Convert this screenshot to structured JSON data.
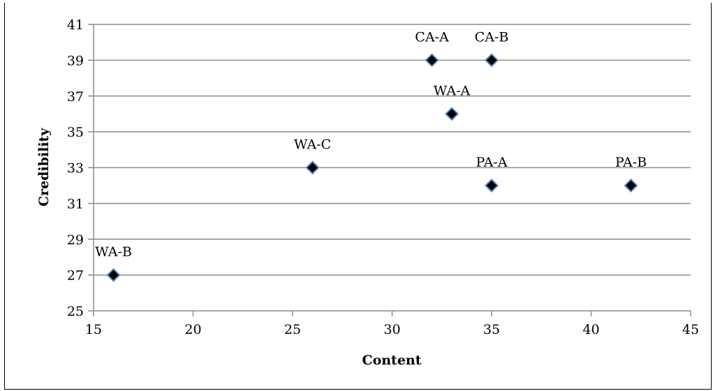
{
  "chart_data": {
    "type": "scatter",
    "xlabel": "Content",
    "ylabel": "Credibility",
    "xlim": [
      15,
      45
    ],
    "ylim": [
      25,
      41
    ],
    "x_ticks": [
      "15",
      "20",
      "25",
      "30",
      "35",
      "40",
      "45"
    ],
    "y_ticks": [
      "25",
      "27",
      "29",
      "31",
      "33",
      "35",
      "37",
      "39",
      "41"
    ],
    "grid": "horizontal",
    "legend": "none",
    "marker": "diamond",
    "marker_color": "#000000",
    "marker_edge_color": "#4f81bd",
    "points": [
      {
        "label": "CA-A",
        "x": 32,
        "y": 39
      },
      {
        "label": "CA-B",
        "x": 35,
        "y": 39
      },
      {
        "label": "WA-A",
        "x": 33,
        "y": 36
      },
      {
        "label": "WA-C",
        "x": 26,
        "y": 33
      },
      {
        "label": "PA-A",
        "x": 35,
        "y": 32
      },
      {
        "label": "PA-B",
        "x": 42,
        "y": 32
      },
      {
        "label": "WA-B",
        "x": 16,
        "y": 27
      }
    ]
  }
}
